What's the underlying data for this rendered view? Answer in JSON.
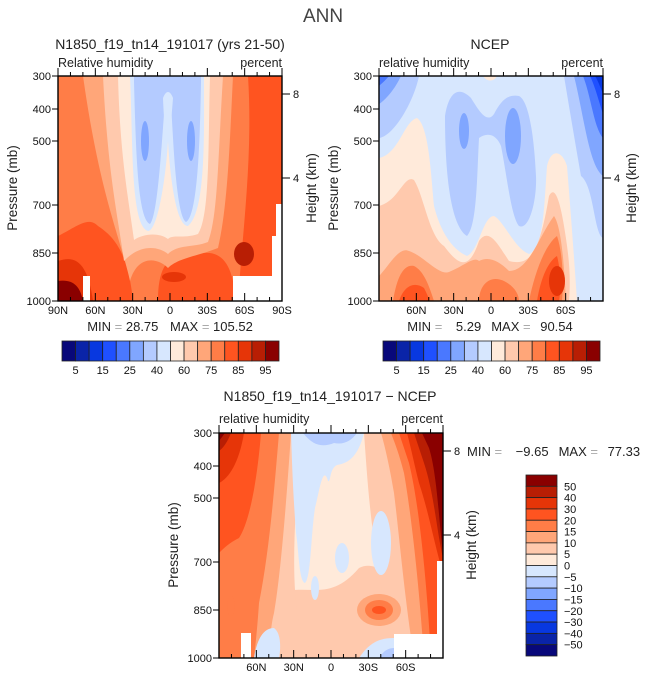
{
  "title": "ANN",
  "colors": {
    "c1": "#08087a",
    "c2": "#0a24a8",
    "c3": "#0838e0",
    "c4": "#1f50ff",
    "c5": "#4a78ff",
    "c6": "#80a6ff",
    "c7": "#b4cbff",
    "c8": "#d7e7fe",
    "c9": "#ffeada",
    "c10": "#ffc9ad",
    "c11": "#ffa679",
    "c12": "#ff7d47",
    "c13": "#ff5420",
    "c14": "#e63508",
    "c15": "#b81e04",
    "c16": "#8a0000"
  },
  "chart_data": [
    {
      "type": "contour",
      "title": "N1850_f19_tn14_191017 (yrs 21-50)",
      "left_label": "Relative humidity",
      "right_label": "percent",
      "ylabel": "Pressure (mb)",
      "y2label": "Height (km)",
      "yticks": [
        "300",
        "400",
        "500",
        "700",
        "850",
        "1000"
      ],
      "y2ticks": [
        "8",
        "4"
      ],
      "xticks": [
        "90N",
        "60N",
        "30N",
        "0",
        "30S",
        "60S",
        "90S"
      ],
      "min_label": "MIN",
      "min": "28.75",
      "max_label": "MAX",
      "max": "105.52",
      "colorbar": {
        "labels": [
          "5",
          "15",
          "25",
          "40",
          "60",
          "75",
          "85",
          "95"
        ]
      }
    },
    {
      "type": "contour",
      "title": "NCEP",
      "left_label": "relative humidity",
      "right_label": "percent",
      "ylabel": "Pressure (mb)",
      "y2label": "Height (km)",
      "yticks": [
        "300",
        "400",
        "500",
        "700",
        "850",
        "1000"
      ],
      "y2ticks": [
        "8",
        "4"
      ],
      "xticks": [
        "60N",
        "30N",
        "0",
        "30S",
        "60S"
      ],
      "min_label": "MIN",
      "min": "5.29",
      "max_label": "MAX",
      "max": "90.54",
      "colorbar": {
        "labels": [
          "5",
          "15",
          "25",
          "40",
          "60",
          "75",
          "85",
          "95"
        ]
      }
    },
    {
      "type": "contour",
      "title": "N1850_f19_tn14_191017 − NCEP",
      "left_label": "relative humidity",
      "right_label": "percent",
      "ylabel": "Pressure (mb)",
      "y2label": "Height (km)",
      "yticks": [
        "300",
        "400",
        "500",
        "700",
        "850",
        "1000"
      ],
      "y2ticks": [
        "8",
        "4"
      ],
      "xticks": [
        "60N",
        "30N",
        "0",
        "30S",
        "60S"
      ],
      "min_label": "MIN",
      "min": "−9.65",
      "max_label": "MAX",
      "max": "77.33",
      "colorbar": {
        "labels": [
          "50",
          "40",
          "30",
          "20",
          "15",
          "10",
          "5",
          "0",
          "−5",
          "−10",
          "−15",
          "−20",
          "−30",
          "−40",
          "−50"
        ]
      }
    }
  ]
}
